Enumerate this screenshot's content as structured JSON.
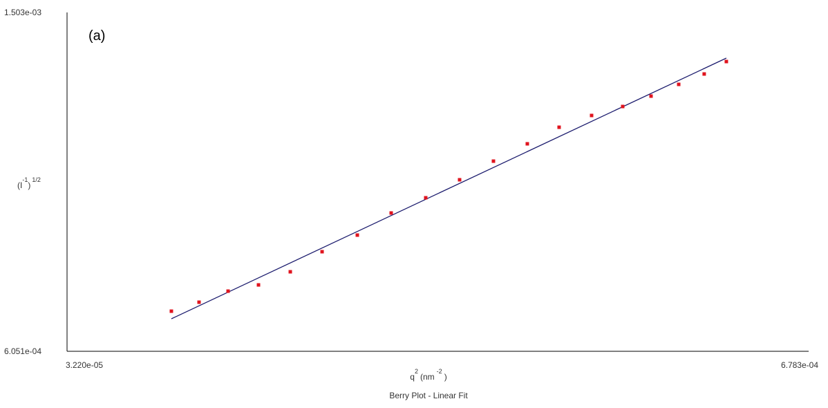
{
  "chart_data": {
    "type": "scatter",
    "title": "Berry Plot - Linear Fit",
    "annotation": "(a)",
    "xlabel": [
      "q",
      "2",
      "(nm",
      "-2",
      ")"
    ],
    "ylabel": [
      "(I",
      "-1",
      ")",
      "1/2"
    ],
    "xlim": [
      3.22e-05,
      0.0006783
    ],
    "ylim": [
      0.0006051,
      0.001503
    ],
    "xticks": [
      {
        "value": 3.22e-05,
        "label": "3.220e-05"
      },
      {
        "value": 0.0006783,
        "label": "6.783e-04"
      }
    ],
    "yticks": [
      {
        "value": 0.0006051,
        "label": "6.051e-04"
      },
      {
        "value": 0.001503,
        "label": "1.503e-03"
      }
    ],
    "color": "#e0141e",
    "x": [
      0.0001231,
      0.0001472,
      0.0001725,
      0.000199,
      0.0002267,
      0.0002544,
      0.0002851,
      0.0003146,
      0.0003447,
      0.0003742,
      0.0004037,
      0.0004332,
      0.0004609,
      0.0004892,
      0.0005163,
      0.000541,
      0.0005651,
      0.0005873,
      0.0006066
    ],
    "values": [
      0.0007114,
      0.0007352,
      0.0007645,
      0.000781,
      0.0008158,
      0.000869,
      0.000913,
      0.0009716,
      0.0010119,
      0.0010596,
      0.001109,
      0.0011549,
      0.0011988,
      0.00123,
      0.0012538,
      0.0012813,
      0.0013124,
      0.0013399,
      0.0013729
    ],
    "fit": {
      "color": "#1c1c6e",
      "x": [
        0.0001231,
        0.0006066
      ],
      "values": [
        0.0006912,
        0.0013821
      ]
    }
  }
}
